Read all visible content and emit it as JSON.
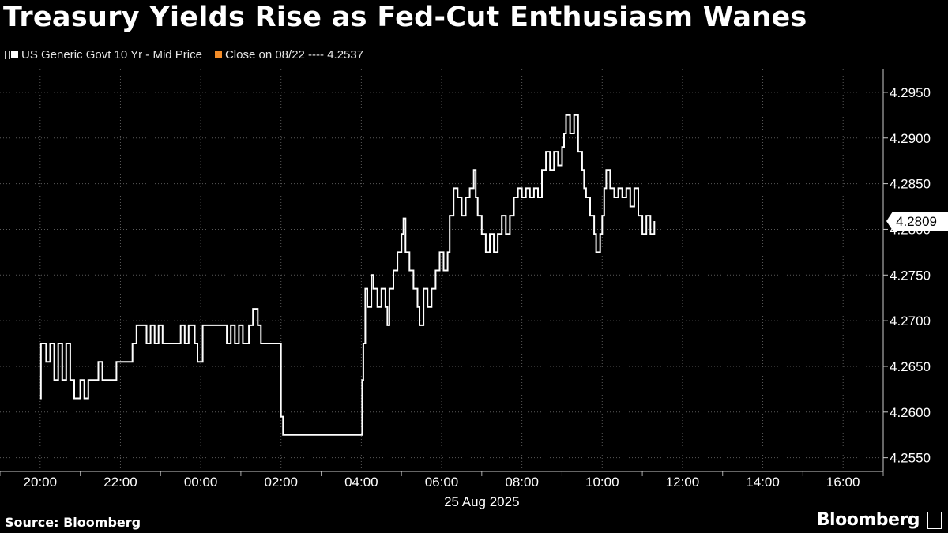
{
  "title": "Treasury Yields Rise as Fed-Cut Enthusiasm Wanes",
  "legend": [
    {
      "label": "US Generic Govt 10 Yr - Mid Price",
      "color": "#ffffff",
      "icon": "candlestick-icon"
    },
    {
      "label": "Close on 08/22 ---- 4.2537",
      "color": "#f28c28"
    }
  ],
  "source": "Source: Bloomberg",
  "brand": "Bloomberg",
  "chart_data": {
    "type": "line",
    "series": [
      {
        "name": "US Generic Govt 10 Yr - Mid Price",
        "color": "#ffffff",
        "points": [
          [
            0.0,
            4.2615
          ],
          [
            0.02,
            4.2675
          ],
          [
            0.15,
            4.2655
          ],
          [
            0.25,
            4.2675
          ],
          [
            0.35,
            4.2635
          ],
          [
            0.45,
            4.2675
          ],
          [
            0.55,
            4.2635
          ],
          [
            0.65,
            4.2675
          ],
          [
            0.75,
            4.2635
          ],
          [
            0.85,
            4.2615
          ],
          [
            1.0,
            4.2635
          ],
          [
            1.1,
            4.2615
          ],
          [
            1.2,
            4.2635
          ],
          [
            1.3,
            4.2635
          ],
          [
            1.45,
            4.2655
          ],
          [
            1.55,
            4.2635
          ],
          [
            1.7,
            4.2635
          ],
          [
            1.8,
            4.2635
          ],
          [
            1.9,
            4.2655
          ],
          [
            2.0,
            4.2655
          ],
          [
            2.1,
            4.2655
          ],
          [
            2.2,
            4.2655
          ],
          [
            2.3,
            4.2675
          ],
          [
            2.4,
            4.2695
          ],
          [
            2.55,
            4.2695
          ],
          [
            2.65,
            4.2675
          ],
          [
            2.75,
            4.2695
          ],
          [
            2.85,
            4.2675
          ],
          [
            2.95,
            4.2695
          ],
          [
            3.05,
            4.2675
          ],
          [
            3.15,
            4.2675
          ],
          [
            3.3,
            4.2675
          ],
          [
            3.4,
            4.2675
          ],
          [
            3.5,
            4.2695
          ],
          [
            3.6,
            4.2675
          ],
          [
            3.7,
            4.2695
          ],
          [
            3.85,
            4.2675
          ],
          [
            3.92,
            4.2655
          ],
          [
            4.05,
            4.2695
          ],
          [
            4.3,
            4.2695
          ],
          [
            4.55,
            4.2695
          ],
          [
            4.65,
            4.2675
          ],
          [
            4.75,
            4.2695
          ],
          [
            4.85,
            4.2675
          ],
          [
            4.95,
            4.2695
          ],
          [
            5.05,
            4.2675
          ],
          [
            5.2,
            4.2695
          ],
          [
            5.3,
            4.2713
          ],
          [
            5.42,
            4.2695
          ],
          [
            5.5,
            4.2675
          ],
          [
            5.6,
            4.2675
          ],
          [
            5.7,
            4.2675
          ],
          [
            6.0,
            4.2595
          ],
          [
            6.05,
            4.2575
          ],
          [
            7.95,
            4.2575
          ],
          [
            8.0,
            4.2575
          ],
          [
            8.02,
            4.2635
          ],
          [
            8.05,
            4.2675
          ],
          [
            8.1,
            4.2735
          ],
          [
            8.15,
            4.2715
          ],
          [
            8.25,
            4.275
          ],
          [
            8.3,
            4.2735
          ],
          [
            8.4,
            4.2715
          ],
          [
            8.5,
            4.2735
          ],
          [
            8.6,
            4.2715
          ],
          [
            8.65,
            4.2695
          ],
          [
            8.7,
            4.2735
          ],
          [
            8.8,
            4.2755
          ],
          [
            8.9,
            4.2775
          ],
          [
            9.0,
            4.2795
          ],
          [
            9.05,
            4.2812
          ],
          [
            9.1,
            4.2775
          ],
          [
            9.2,
            4.2755
          ],
          [
            9.3,
            4.2735
          ],
          [
            9.4,
            4.2715
          ],
          [
            9.45,
            4.2695
          ],
          [
            9.55,
            4.2735
          ],
          [
            9.65,
            4.2715
          ],
          [
            9.75,
            4.2735
          ],
          [
            9.85,
            4.2755
          ],
          [
            9.95,
            4.2775
          ],
          [
            10.05,
            4.2755
          ],
          [
            10.15,
            4.2775
          ],
          [
            10.2,
            4.2815
          ],
          [
            10.3,
            4.2845
          ],
          [
            10.4,
            4.2835
          ],
          [
            10.5,
            4.2815
          ],
          [
            10.6,
            4.2835
          ],
          [
            10.7,
            4.2845
          ],
          [
            10.8,
            4.2865
          ],
          [
            10.85,
            4.2835
          ],
          [
            10.9,
            4.2815
          ],
          [
            11.0,
            4.2795
          ],
          [
            11.1,
            4.2775
          ],
          [
            11.2,
            4.2795
          ],
          [
            11.3,
            4.2775
          ],
          [
            11.4,
            4.2795
          ],
          [
            11.5,
            4.2815
          ],
          [
            11.6,
            4.2795
          ],
          [
            11.7,
            4.2815
          ],
          [
            11.8,
            4.2835
          ],
          [
            11.9,
            4.2845
          ],
          [
            12.0,
            4.2835
          ],
          [
            12.1,
            4.2845
          ],
          [
            12.2,
            4.2835
          ],
          [
            12.3,
            4.2845
          ],
          [
            12.4,
            4.2835
          ],
          [
            12.5,
            4.2865
          ],
          [
            12.6,
            4.2885
          ],
          [
            12.7,
            4.2865
          ],
          [
            12.8,
            4.2885
          ],
          [
            12.9,
            4.287
          ],
          [
            13.0,
            4.289
          ],
          [
            13.05,
            4.2905
          ],
          [
            13.1,
            4.2925
          ],
          [
            13.2,
            4.2905
          ],
          [
            13.3,
            4.2925
          ],
          [
            13.4,
            4.2885
          ],
          [
            13.5,
            4.2865
          ],
          [
            13.55,
            4.2845
          ],
          [
            13.6,
            4.2835
          ],
          [
            13.7,
            4.2815
          ],
          [
            13.8,
            4.2795
          ],
          [
            13.85,
            4.2775
          ],
          [
            13.95,
            4.2795
          ],
          [
            14.0,
            4.2815
          ],
          [
            14.05,
            4.2845
          ],
          [
            14.1,
            4.2865
          ],
          [
            14.2,
            4.2845
          ],
          [
            14.3,
            4.2835
          ],
          [
            14.4,
            4.2845
          ],
          [
            14.5,
            4.2835
          ],
          [
            14.6,
            4.2845
          ],
          [
            14.7,
            4.2825
          ],
          [
            14.8,
            4.2845
          ],
          [
            14.9,
            4.2815
          ],
          [
            15.0,
            4.2795
          ],
          [
            15.1,
            4.2815
          ],
          [
            15.2,
            4.2795
          ],
          [
            15.3,
            4.2809
          ]
        ]
      }
    ],
    "x_unit": "hours since 20:00 (24 Aug 2025)",
    "xlim": [
      -1.0,
      21.0
    ],
    "x_ticks": [
      {
        "value": 0,
        "label": "20:00"
      },
      {
        "value": 2,
        "label": "22:00"
      },
      {
        "value": 4,
        "label": "00:00"
      },
      {
        "value": 6,
        "label": "02:00"
      },
      {
        "value": 8,
        "label": "04:00"
      },
      {
        "value": 10,
        "label": "06:00"
      },
      {
        "value": 12,
        "label": "08:00"
      },
      {
        "value": 14,
        "label": "10:00"
      },
      {
        "value": 16,
        "label": "12:00"
      },
      {
        "value": 18,
        "label": "14:00"
      },
      {
        "value": 20,
        "label": "16:00"
      }
    ],
    "x_sublabel": "25 Aug 2025",
    "ylim": [
      4.2535,
      4.2975
    ],
    "y_ticks": [
      {
        "value": 4.255,
        "label": "4.2550"
      },
      {
        "value": 4.26,
        "label": "4.2600"
      },
      {
        "value": 4.265,
        "label": "4.2650"
      },
      {
        "value": 4.27,
        "label": "4.2700"
      },
      {
        "value": 4.275,
        "label": "4.2750"
      },
      {
        "value": 4.28,
        "label": "4.2800"
      },
      {
        "value": 4.285,
        "label": "4.2850"
      },
      {
        "value": 4.29,
        "label": "4.2900"
      },
      {
        "value": 4.295,
        "label": "4.2950"
      }
    ],
    "last_value": {
      "value": 4.2809,
      "label": "4.2809"
    },
    "grid": true,
    "legend_position": "top-left"
  }
}
